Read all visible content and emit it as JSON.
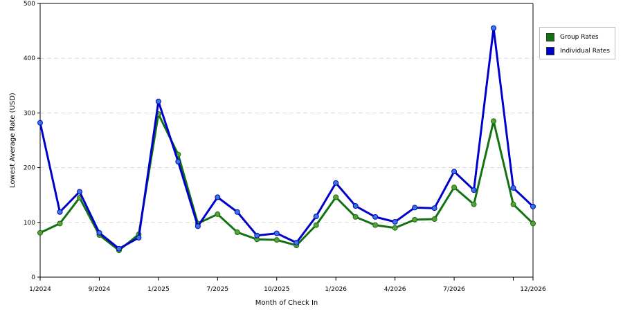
{
  "chart_data": {
    "type": "line",
    "xlabel": "Month of Check In",
    "ylabel": "Lowest Average Rate (USD)",
    "ylim": [
      0,
      500
    ],
    "yticks": [
      0,
      100,
      200,
      300,
      400,
      500
    ],
    "grid": true,
    "legend_position": "right",
    "x_tick_labels": [
      "1/2024",
      "9/2024",
      "1/2025",
      "7/2025",
      "10/2025",
      "1/2026",
      "4/2026",
      "7/2026",
      "",
      "12/2026"
    ],
    "series": [
      {
        "name": "Group Rates",
        "color": "#127212",
        "marker_color": "#5e9e36",
        "values": [
          81,
          98,
          145,
          77,
          49,
          78,
          298,
          224,
          98,
          115,
          82,
          69,
          68,
          58,
          95,
          146,
          110,
          95,
          90,
          105,
          106,
          164,
          133,
          285,
          133,
          98
        ]
      },
      {
        "name": "Individual Rates",
        "color": "#0000cc",
        "marker_color": "#3a78d8",
        "values": [
          282,
          119,
          156,
          81,
          52,
          72,
          321,
          211,
          93,
          146,
          119,
          76,
          80,
          63,
          111,
          172,
          130,
          110,
          101,
          127,
          126,
          193,
          159,
          455,
          163,
          129
        ]
      }
    ]
  }
}
